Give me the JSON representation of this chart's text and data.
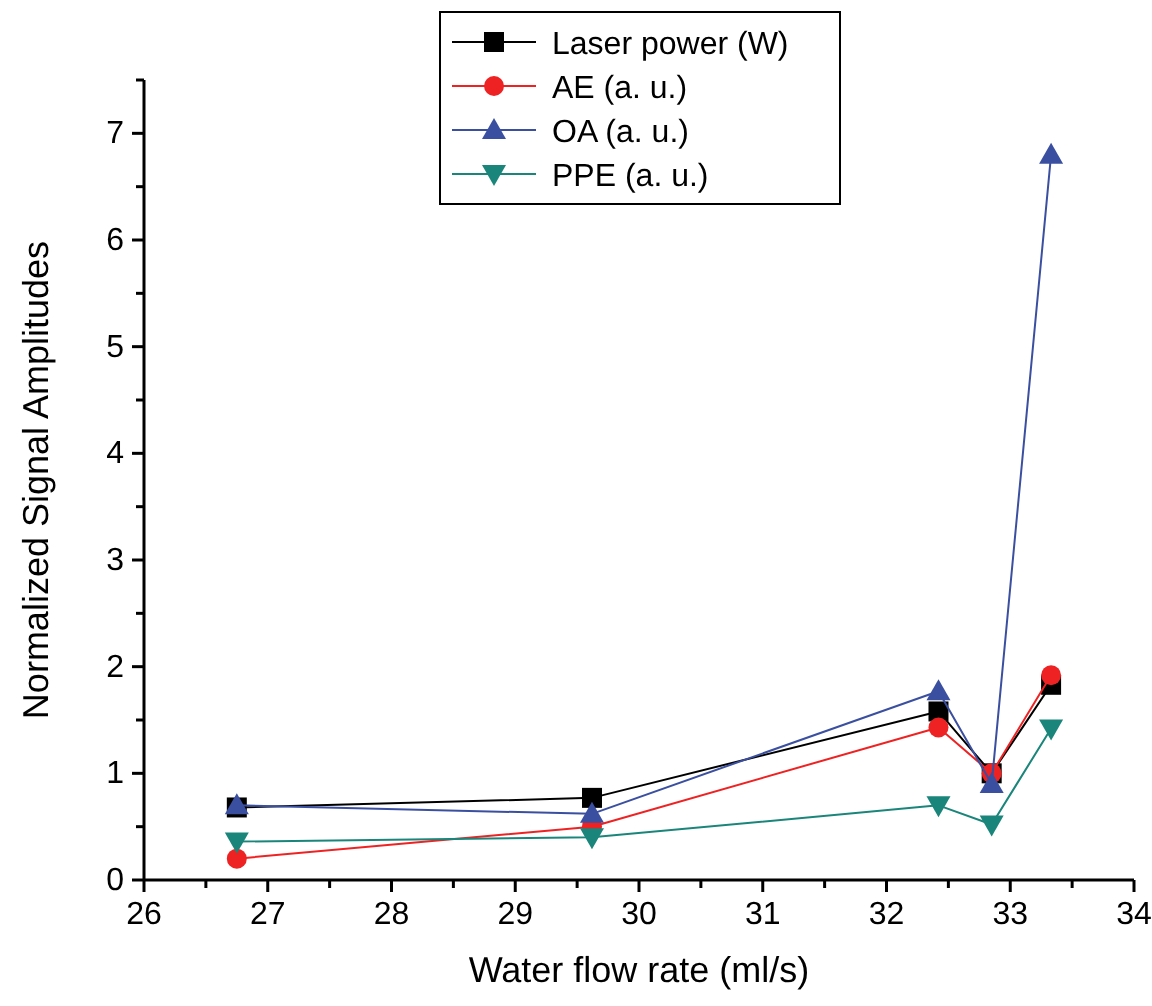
{
  "chart_data": {
    "type": "line",
    "xlabel": "Water flow rate (ml/s)",
    "ylabel": "Normalized Signal Amplitudes",
    "x": [
      26.75,
      29.62,
      32.42,
      32.85,
      33.33
    ],
    "xlim": [
      26,
      34
    ],
    "xticks": [
      26,
      {
        "value": 26.5,
        "label": null
      },
      27,
      {
        "value": 27.5,
        "label": null
      },
      28,
      {
        "value": 28.5,
        "label": null
      },
      29,
      {
        "value": 29.5,
        "label": null
      },
      30,
      {
        "value": 30.5,
        "label": null
      },
      31,
      {
        "value": 31.5,
        "label": null
      },
      32,
      {
        "value": 32.5,
        "label": null
      },
      33,
      {
        "value": 33.5,
        "label": null
      },
      34
    ],
    "ylim": [
      0,
      7.5
    ],
    "yticks": [
      0,
      {
        "value": 0.5,
        "label": null
      },
      1,
      {
        "value": 1.5,
        "label": null
      },
      2,
      {
        "value": 2.5,
        "label": null
      },
      3,
      {
        "value": 3.5,
        "label": null
      },
      4,
      {
        "value": 4.5,
        "label": null
      },
      5,
      {
        "value": 5.5,
        "label": null
      },
      6,
      {
        "value": 6.5,
        "label": null
      },
      7,
      {
        "value": 7.5,
        "label": null
      }
    ],
    "legend": "top",
    "grid": false,
    "series": [
      {
        "name": "Laser power (W)",
        "color": "#000000",
        "marker": "square",
        "values": [
          0.68,
          0.77,
          1.58,
          1.0,
          1.83
        ]
      },
      {
        "name": "AE (a. u.)",
        "color": "#ee2222",
        "marker": "circle",
        "values": [
          0.2,
          0.5,
          1.43,
          1.0,
          1.92
        ]
      },
      {
        "name": "OA (a. u.)",
        "color": "#3a4fa0",
        "marker": "triangle",
        "values": [
          0.7,
          0.62,
          1.77,
          0.9,
          6.8
        ]
      },
      {
        "name": "PPE (a. u.)",
        "color": "#1a857a",
        "marker": "triangle-down",
        "values": [
          0.36,
          0.4,
          0.7,
          0.52,
          1.42
        ]
      }
    ]
  }
}
